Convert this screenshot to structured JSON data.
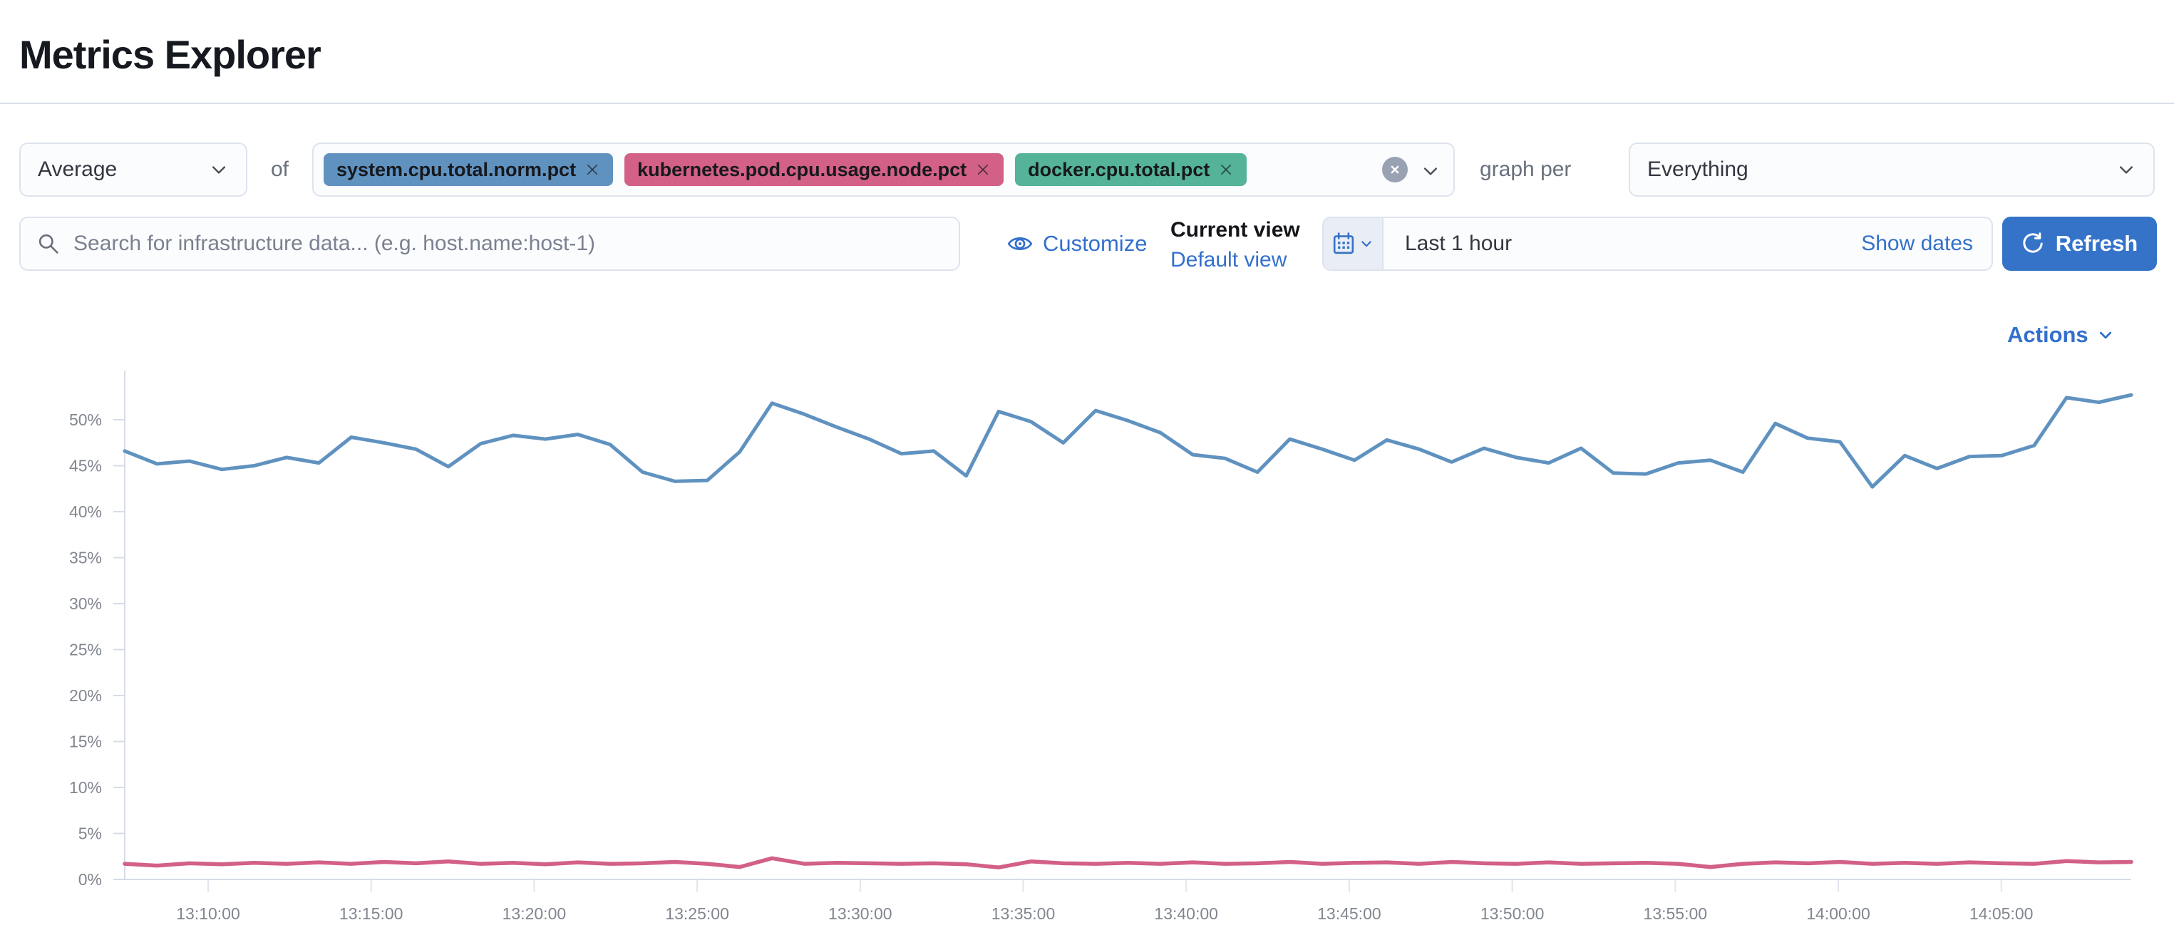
{
  "page": {
    "title": "Metrics Explorer"
  },
  "toolbar": {
    "aggregation_value": "Average",
    "of_label": "of",
    "metrics": [
      {
        "label": "system.cpu.total.norm.pct",
        "color": "#6092C0"
      },
      {
        "label": "kubernetes.pod.cpu.usage.node.pct",
        "color": "#D36086"
      },
      {
        "label": "docker.cpu.total.pct",
        "color": "#54B399"
      }
    ],
    "graph_per_label": "graph per",
    "group_by_value": "Everything"
  },
  "filter_bar": {
    "search_placeholder": "Search for infrastructure data... (e.g. host.name:host-1)",
    "customize_label": "Customize",
    "current_view_label": "Current view",
    "default_view_label": "Default view",
    "time_range_value": "Last 1 hour",
    "show_dates_label": "Show dates",
    "refresh_label": "Refresh"
  },
  "actions_label": "Actions",
  "colors": {
    "primary_blue": "#3573C9",
    "link_blue": "#3370CC",
    "series_blue": "#6092C0",
    "series_pink": "#D36086",
    "series_green": "#54B399",
    "axis_gray": "#D6DCE6"
  },
  "chart_data": {
    "type": "line",
    "title": "",
    "xlabel": "",
    "ylabel": "",
    "y_unit": "%",
    "ylim": [
      0,
      55
    ],
    "grid": "ticks-only",
    "legend": "none",
    "y_ticks": [
      0,
      5,
      10,
      15,
      20,
      25,
      30,
      35,
      40,
      45,
      50
    ],
    "x_ticks": [
      "13:10:00",
      "13:15:00",
      "13:20:00",
      "13:25:00",
      "13:30:00",
      "13:35:00",
      "13:40:00",
      "13:45:00",
      "13:50:00",
      "13:55:00",
      "14:00:00",
      "14:05:00"
    ],
    "series": [
      {
        "name": "system.cpu.total.norm.pct",
        "color": "#6092C0",
        "stroke_width": 5,
        "values": [
          46.6,
          45.2,
          45.5,
          44.6,
          45.0,
          45.9,
          45.3,
          48.1,
          47.5,
          46.8,
          44.9,
          47.4,
          48.3,
          47.9,
          48.4,
          47.3,
          44.3,
          43.3,
          43.4,
          46.5,
          51.8,
          50.6,
          49.2,
          47.9,
          46.3,
          46.6,
          43.9,
          50.9,
          49.8,
          47.5,
          51.0,
          49.9,
          48.6,
          46.2,
          45.8,
          44.3,
          47.9,
          46.8,
          45.6,
          47.8,
          46.8,
          45.4,
          46.9,
          45.9,
          45.3,
          46.9,
          44.2,
          44.1,
          45.3,
          45.6,
          44.3,
          49.6,
          48.0,
          47.6,
          42.7,
          46.1,
          44.7,
          46.0,
          46.1,
          47.2,
          52.4,
          51.9,
          52.7
        ]
      },
      {
        "name": "kubernetes.pod.cpu.usage.node.pct",
        "color": "#D36086",
        "stroke_width": 5.5,
        "values": [
          1.7,
          1.5,
          1.75,
          1.65,
          1.8,
          1.7,
          1.85,
          1.7,
          1.9,
          1.75,
          1.95,
          1.7,
          1.8,
          1.65,
          1.85,
          1.7,
          1.75,
          1.9,
          1.7,
          1.35,
          2.3,
          1.7,
          1.8,
          1.75,
          1.7,
          1.75,
          1.65,
          1.3,
          1.95,
          1.75,
          1.7,
          1.8,
          1.7,
          1.85,
          1.7,
          1.75,
          1.9,
          1.7,
          1.8,
          1.85,
          1.7,
          1.9,
          1.75,
          1.7,
          1.85,
          1.7,
          1.75,
          1.8,
          1.7,
          1.35,
          1.7,
          1.85,
          1.75,
          1.9,
          1.7,
          1.8,
          1.7,
          1.85,
          1.75,
          1.7,
          2.0,
          1.85,
          1.9
        ]
      }
    ]
  }
}
